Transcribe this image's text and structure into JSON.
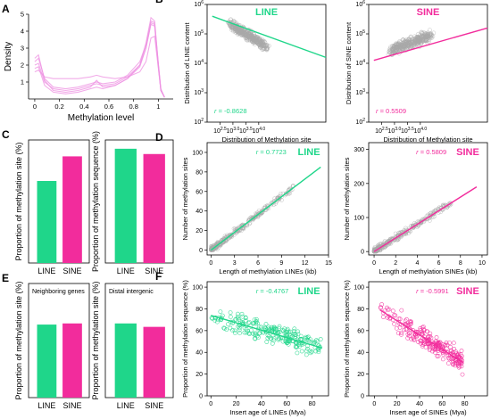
{
  "colors": {
    "line": "#1fd68a",
    "sine": "#f22c9c",
    "density": "#ee90e2",
    "scatter": "#a8a8a8",
    "axis": "#000000"
  },
  "panels": {
    "A": "A",
    "B": "B",
    "C": "C",
    "D": "D",
    "E": "E",
    "F": "F"
  },
  "chart_data": [
    {
      "id": "A",
      "type": "line",
      "xlabel": "Methylation level",
      "ylabel": "Density",
      "xlim": [
        -0.05,
        1.12
      ],
      "ylim": [
        0,
        5
      ],
      "xticks": [
        "0",
        "0.2",
        "0.4",
        "0.6",
        "0.8",
        "1"
      ],
      "yticks": [
        "1",
        "2",
        "3",
        "4",
        "5"
      ],
      "x": [
        0,
        0.03,
        0.08,
        0.15,
        0.25,
        0.35,
        0.45,
        0.5,
        0.55,
        0.65,
        0.75,
        0.85,
        0.9,
        0.94,
        0.97,
        1.0,
        1.02,
        1.05
      ],
      "series": [
        {
          "values": [
            2.0,
            2.1,
            1.0,
            0.6,
            0.5,
            0.6,
            0.8,
            0.9,
            0.8,
            0.9,
            1.3,
            2.0,
            3.0,
            4.5,
            4.4,
            2.0,
            0.5,
            0.1
          ]
        },
        {
          "values": [
            2.2,
            2.4,
            1.2,
            0.7,
            0.6,
            0.7,
            0.9,
            1.0,
            0.9,
            1.0,
            1.4,
            2.2,
            3.2,
            4.6,
            4.5,
            2.1,
            0.6,
            0.1
          ]
        },
        {
          "values": [
            1.8,
            1.9,
            0.8,
            0.4,
            0.3,
            0.4,
            0.6,
            0.7,
            0.6,
            0.8,
            1.2,
            1.9,
            3.0,
            4.4,
            4.3,
            1.9,
            0.5,
            0.1
          ]
        },
        {
          "values": [
            1.6,
            1.7,
            1.3,
            1.2,
            1.2,
            1.2,
            1.3,
            1.4,
            1.3,
            1.2,
            1.3,
            1.6,
            2.2,
            3.6,
            3.7,
            1.8,
            0.5,
            0.1
          ]
        },
        {
          "values": [
            2.4,
            2.6,
            1.1,
            0.5,
            0.4,
            0.5,
            0.7,
            1.1,
            0.7,
            0.8,
            1.2,
            2.0,
            3.3,
            4.8,
            4.6,
            2.0,
            0.5,
            0.1
          ]
        }
      ]
    },
    {
      "id": "B1",
      "type": "scatter",
      "title": "LINE",
      "xlabel": "Distribution of Methylation site",
      "ylabel": "Distribution of LINE content",
      "annotation": "r = -0.8628",
      "log": true,
      "xlim": [
        12.0,
        16.6
      ],
      "ylim": [
        2,
        6
      ],
      "xticks": [
        {
          "v": 12.5,
          "base": "10",
          "exp": "2.5"
        },
        {
          "v": 13.0,
          "base": "10",
          "exp": "3.0"
        },
        {
          "v": 13.5,
          "base": "10",
          "exp": "3.5"
        },
        {
          "v": 14.0,
          "base": "10",
          "exp": "4.0"
        }
      ],
      "yticks": [
        {
          "v": 2,
          "base": "10",
          "exp": "2"
        },
        {
          "v": 3,
          "base": "10",
          "exp": "3"
        },
        {
          "v": 4,
          "base": "10",
          "exp": "4"
        },
        {
          "v": 5,
          "base": "10",
          "exp": "5"
        },
        {
          "v": 6,
          "base": "10",
          "exp": "6"
        }
      ],
      "cloud": {
        "x": [
          12.9,
          14.3
        ],
        "y": [
          4.8,
          5.2
        ],
        "slope": -0.55
      },
      "fit": [
        [
          12.2,
          5.6
        ],
        [
          16.6,
          4.2
        ]
      ]
    },
    {
      "id": "B2",
      "type": "scatter",
      "title": "SINE",
      "xlabel": "Distribution of Methylation site",
      "ylabel": "Distribution of SINE content",
      "annotation": "r = 0.5509",
      "log": true,
      "xlim": [
        12.0,
        16.6
      ],
      "ylim": [
        2,
        6
      ],
      "xticks": [
        {
          "v": 12.5,
          "base": "10",
          "exp": "2.5"
        },
        {
          "v": 13.0,
          "base": "10",
          "exp": "3.0"
        },
        {
          "v": 13.5,
          "base": "10",
          "exp": "3.5"
        },
        {
          "v": 14.0,
          "base": "10",
          "exp": "4.0"
        }
      ],
      "yticks": [
        {
          "v": 2,
          "base": "10",
          "exp": "2"
        },
        {
          "v": 3,
          "base": "10",
          "exp": "3"
        },
        {
          "v": 4,
          "base": "10",
          "exp": "4"
        },
        {
          "v": 5,
          "base": "10",
          "exp": "5"
        },
        {
          "v": 6,
          "base": "10",
          "exp": "6"
        }
      ],
      "cloud": {
        "x": [
          12.9,
          14.4
        ],
        "y": [
          4.3,
          5.0
        ],
        "slope": 0.35
      },
      "fit": [
        [
          12.2,
          4.1
        ],
        [
          16.6,
          5.2
        ]
      ]
    },
    {
      "id": "C1",
      "type": "bar",
      "categories": [
        "LINE",
        "SINE"
      ],
      "values": [
        20,
        26
      ],
      "ylim": [
        0,
        30
      ],
      "ylabel": "Proportion of methylation site (%)"
    },
    {
      "id": "C2",
      "type": "bar",
      "categories": [
        "LINE",
        "SINE"
      ],
      "values": [
        65,
        62
      ],
      "ylim": [
        0,
        70
      ],
      "ylabel": "Proportion of methylation sequence (%)"
    },
    {
      "id": "D1",
      "type": "scatter",
      "title": "LINE",
      "annotation": "r = 0.7723",
      "xlabel": "Length of methylation LINEs (kb)",
      "ylabel": "Number of methylation sites",
      "xlim": [
        -0.5,
        15
      ],
      "ylim": [
        -5,
        110
      ],
      "xticks": [
        "0",
        "3",
        "6",
        "9",
        "12",
        "15"
      ],
      "yticks": [
        "0",
        "20",
        "40",
        "60",
        "80",
        "100"
      ],
      "fit": [
        [
          0,
          0
        ],
        [
          14,
          85
        ]
      ]
    },
    {
      "id": "D2",
      "type": "scatter",
      "title": "SINE",
      "annotation": "r = 0.5809",
      "xlabel": "Length of methylation SINEs (kb)",
      "ylabel": "Number of methylation sites",
      "xlim": [
        -0.5,
        10.5
      ],
      "ylim": [
        -10,
        320
      ],
      "xticks": [
        "0",
        "2",
        "4",
        "6",
        "8",
        "10"
      ],
      "yticks": [
        "0",
        "100",
        "200",
        "300"
      ],
      "fit": [
        [
          0,
          0
        ],
        [
          9.5,
          190
        ]
      ]
    },
    {
      "id": "E1",
      "type": "bar",
      "subtitle": "Neighboring genes",
      "categories": [
        "LINE",
        "SINE"
      ],
      "values": [
        64,
        65
      ],
      "ylim": [
        0,
        100
      ],
      "ylabel": "Proportion of methylation site (%)"
    },
    {
      "id": "E2",
      "type": "bar",
      "subtitle": "Distal intergenic",
      "categories": [
        "LINE",
        "SINE"
      ],
      "values": [
        65,
        62
      ],
      "ylim": [
        0,
        100
      ],
      "ylabel": "Proportion of methylation site (%)"
    },
    {
      "id": "F1",
      "type": "scatter",
      "title": "LINE",
      "annotation": "r = -0.4767",
      "xlabel": "Insert age of LINEs (Mya)",
      "ylabel": "Proportion of methylation sequence (%)",
      "xlim": [
        -3,
        93
      ],
      "ylim": [
        0,
        105
      ],
      "xticks": [
        "0",
        "20",
        "40",
        "60",
        "80"
      ],
      "yticks": [
        "0",
        "20",
        "40",
        "60",
        "80",
        "100"
      ],
      "fit": [
        [
          0,
          74
        ],
        [
          88,
          44
        ]
      ]
    },
    {
      "id": "F2",
      "type": "scatter",
      "title": "SINE",
      "annotation": "r = -0.5991",
      "xlabel": "Insert age of SINEs (Mya)",
      "ylabel": "Proportion of methylation sequence (%)",
      "xlim": [
        -5,
        100
      ],
      "ylim": [
        0,
        105
      ],
      "xticks": [
        "0",
        "20",
        "40",
        "60",
        "80"
      ],
      "yticks": [
        "0",
        "20",
        "40",
        "60",
        "80",
        "100"
      ],
      "fit": [
        [
          5,
          79
        ],
        [
          78,
          31
        ]
      ]
    }
  ]
}
